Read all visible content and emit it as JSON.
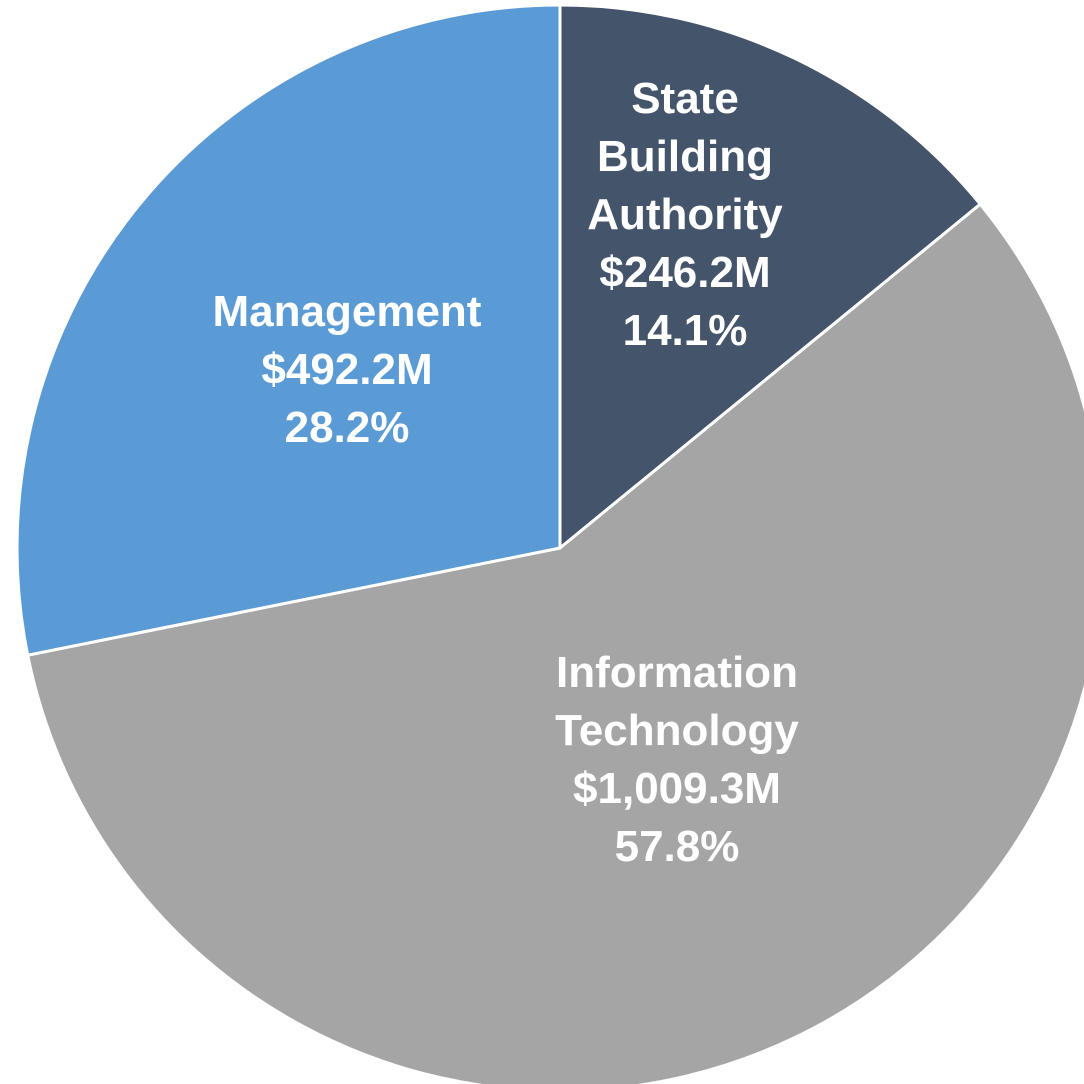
{
  "chart_data": {
    "type": "pie",
    "categories": [
      "State Building Authority",
      "Information Technology",
      "Management"
    ],
    "values": [
      246.2,
      1009.3,
      492.2
    ],
    "value_labels": [
      "$246.2M",
      "$1,009.3M",
      "$492.2M"
    ],
    "percents": [
      14.1,
      57.8,
      28.2
    ],
    "percent_labels": [
      "14.1%",
      "57.8%",
      "28.2%"
    ],
    "colors": [
      "#44546a",
      "#a5a5a5",
      "#5b9bd5"
    ]
  }
}
